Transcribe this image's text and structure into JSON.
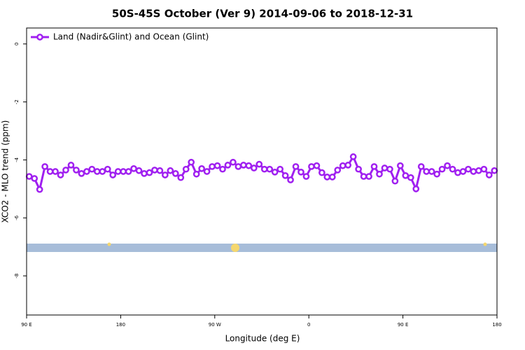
{
  "chart_data": {
    "type": "line",
    "title": "50S-45S October (Ver 9)   2014-09-06 to 2018-12-31",
    "xlabel": "Longitude (deg E)",
    "ylabel": "XCO2 - MLO trend (ppm)",
    "x": [
      92.5,
      97.5,
      102.5,
      107.5,
      112.5,
      117.5,
      122.5,
      127.5,
      132.5,
      137.5,
      142.5,
      147.5,
      152.5,
      157.5,
      162.5,
      167.5,
      172.5,
      177.5,
      182.5,
      187.5,
      192.5,
      197.5,
      202.5,
      207.5,
      212.5,
      217.5,
      222.5,
      227.5,
      232.5,
      237.5,
      242.5,
      247.5,
      252.5,
      257.5,
      262.5,
      267.5,
      272.5,
      277.5,
      282.5,
      287.5,
      292.5,
      297.5,
      302.5,
      307.5,
      312.5,
      317.5,
      322.5,
      327.5,
      332.5,
      337.5,
      342.5,
      347.5,
      352.5,
      357.5,
      362.5,
      367.5,
      372.5,
      377.5,
      382.5,
      387.5,
      392.5,
      397.5,
      402.5,
      407.5,
      412.5,
      417.5,
      422.5,
      427.5,
      432.5,
      437.5,
      442.5,
      447.5,
      452.5,
      457.5,
      462.5,
      467.5,
      472.5,
      477.5,
      482.5,
      487.5,
      492.5,
      497.5,
      502.5,
      507.5,
      512.5,
      517.5,
      522.5,
      527.5,
      532.5,
      537.5
    ],
    "series": [
      {
        "name": "Land (Nadir&Glint) and Ocean (Glint)",
        "color": "#a020f0",
        "values": [
          -4.57,
          -4.64,
          -5.02,
          -4.23,
          -4.4,
          -4.4,
          -4.52,
          -4.35,
          -4.18,
          -4.35,
          -4.47,
          -4.4,
          -4.32,
          -4.4,
          -4.4,
          -4.32,
          -4.52,
          -4.4,
          -4.4,
          -4.4,
          -4.3,
          -4.37,
          -4.47,
          -4.44,
          -4.35,
          -4.37,
          -4.52,
          -4.37,
          -4.47,
          -4.61,
          -4.32,
          -4.08,
          -4.49,
          -4.3,
          -4.4,
          -4.23,
          -4.2,
          -4.32,
          -4.18,
          -4.08,
          -4.23,
          -4.18,
          -4.2,
          -4.28,
          -4.15,
          -4.32,
          -4.32,
          -4.42,
          -4.32,
          -4.54,
          -4.69,
          -4.23,
          -4.42,
          -4.57,
          -4.23,
          -4.2,
          -4.44,
          -4.59,
          -4.59,
          -4.35,
          -4.2,
          -4.18,
          -3.89,
          -4.32,
          -4.57,
          -4.57,
          -4.23,
          -4.49,
          -4.28,
          -4.32,
          -4.73,
          -4.2,
          -4.54,
          -4.61,
          -5.0,
          -4.23,
          -4.4,
          -4.4,
          -4.49,
          -4.32,
          -4.2,
          -4.32,
          -4.44,
          -4.4,
          -4.32,
          -4.4,
          -4.37,
          -4.32,
          -4.52,
          -4.37
        ]
      }
    ],
    "xlim": [
      90,
      540
    ],
    "xticks": [
      {
        "value": 90,
        "label": "90 E"
      },
      {
        "value": 180,
        "label": "180"
      },
      {
        "value": 270,
        "label": "90 W"
      },
      {
        "value": 360,
        "label": "0"
      },
      {
        "value": 450,
        "label": "90 E"
      },
      {
        "value": 540,
        "label": "180"
      }
    ],
    "ylim": [
      -9.35,
      0.55
    ],
    "yticks": [
      0,
      -2,
      -4,
      -6,
      -8
    ],
    "legend": "top-left"
  }
}
